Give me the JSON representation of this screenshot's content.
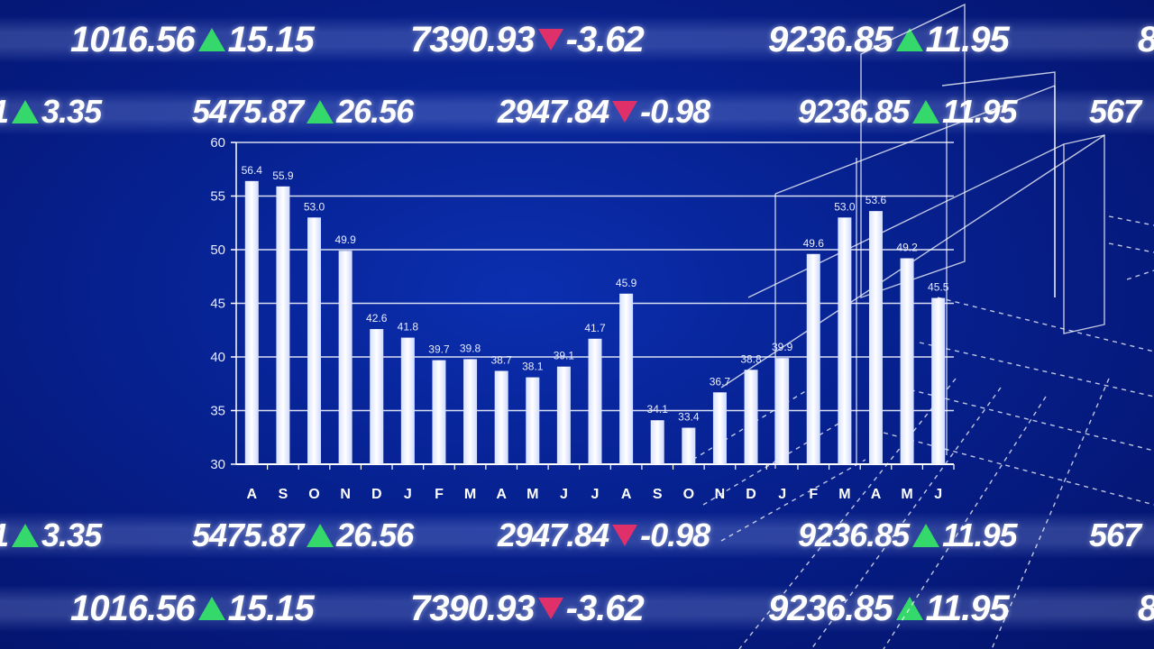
{
  "ticker_rows": [
    {
      "items": [
        {
          "price": "1016.56",
          "dir": "up",
          "change": "15.15"
        },
        {
          "price": "7390.93",
          "dir": "down",
          "change": "-3.62"
        },
        {
          "price": "9236.85",
          "dir": "up",
          "change": "11.95"
        },
        {
          "price": "8",
          "dir": "",
          "change": ""
        }
      ]
    },
    {
      "items": [
        {
          "price": "1",
          "dir": "up",
          "change": "3.35"
        },
        {
          "price": "5475.87",
          "dir": "up",
          "change": "26.56"
        },
        {
          "price": "2947.84",
          "dir": "down",
          "change": "-0.98"
        },
        {
          "price": "9236.85",
          "dir": "up",
          "change": "11.95"
        },
        {
          "price": "567",
          "dir": "",
          "change": ""
        }
      ]
    },
    {
      "items": [
        {
          "price": "1",
          "dir": "up",
          "change": "3.35"
        },
        {
          "price": "5475.87",
          "dir": "up",
          "change": "26.56"
        },
        {
          "price": "2947.84",
          "dir": "down",
          "change": "-0.98"
        },
        {
          "price": "9236.85",
          "dir": "up",
          "change": "11.95"
        },
        {
          "price": "567",
          "dir": "",
          "change": ""
        }
      ]
    },
    {
      "items": [
        {
          "price": "1016.56",
          "dir": "up",
          "change": "15.15"
        },
        {
          "price": "7390.93",
          "dir": "down",
          "change": "-3.62"
        },
        {
          "price": "9236.85",
          "dir": "up",
          "change": "11.95"
        },
        {
          "price": "8",
          "dir": "",
          "change": ""
        }
      ]
    }
  ],
  "colors": {
    "up": "#35d86a",
    "down": "#e0306a",
    "bar": "#ffffff",
    "background": "#06208e"
  },
  "chart_data": {
    "type": "bar",
    "categories": [
      "A",
      "S",
      "O",
      "N",
      "D",
      "J",
      "F",
      "M",
      "A",
      "M",
      "J",
      "J",
      "A",
      "S",
      "O",
      "N",
      "D",
      "J",
      "F",
      "M",
      "A",
      "M",
      "J"
    ],
    "values": [
      56.4,
      55.9,
      53.0,
      49.9,
      42.6,
      41.8,
      39.7,
      39.8,
      38.7,
      38.1,
      39.1,
      41.7,
      45.9,
      34.1,
      33.4,
      36.7,
      38.8,
      39.9,
      49.6,
      53.0,
      53.6,
      49.2,
      45.5
    ],
    "value_labels": [
      "56.4",
      "55.9",
      "53.0",
      "49.9",
      "42.6",
      "41.8",
      "39.7",
      "39.8",
      "38.7",
      "38.1",
      "39.1",
      "41.7",
      "45.9",
      "34.1",
      "33.4",
      "36.7",
      "38.8",
      "39.9",
      "49.6",
      "53.0",
      "53.6",
      "49.2",
      "45.5"
    ],
    "ylim": [
      30,
      60
    ],
    "yticks": [
      30,
      35,
      40,
      45,
      50,
      55,
      60
    ],
    "grid": true,
    "title": "",
    "xlabel": "",
    "ylabel": ""
  }
}
